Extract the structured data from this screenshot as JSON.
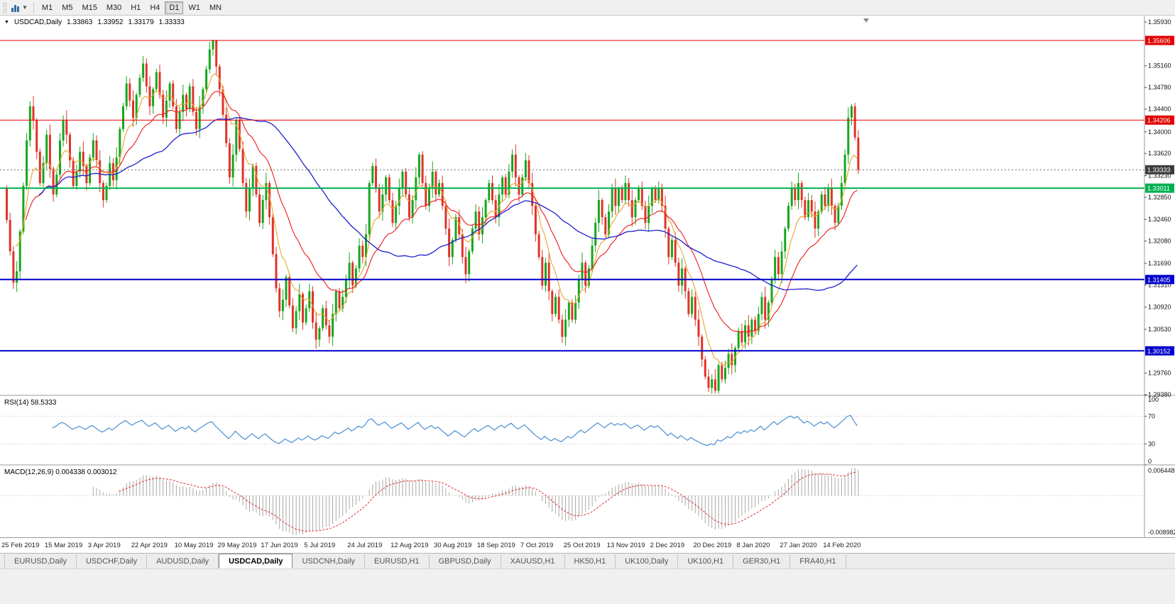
{
  "toolbar": {
    "timeframes": [
      {
        "label": "M1",
        "active": false
      },
      {
        "label": "M5",
        "active": false
      },
      {
        "label": "M15",
        "active": false
      },
      {
        "label": "M30",
        "active": false
      },
      {
        "label": "H1",
        "active": false
      },
      {
        "label": "H4",
        "active": false
      },
      {
        "label": "D1",
        "active": true
      },
      {
        "label": "W1",
        "active": false
      },
      {
        "label": "MN",
        "active": false
      }
    ]
  },
  "symbol_header": {
    "marker": "▼",
    "symbol": "USDCAD,Daily",
    "open": "1.33863",
    "high": "1.33952",
    "low": "1.33179",
    "close": "1.33333"
  },
  "current_price": {
    "value": 1.33333,
    "label": "1.33333"
  },
  "price_axis": {
    "badges": [
      {
        "label": "1.35606",
        "color": "#e00000"
      },
      {
        "label": "1.34206",
        "color": "#e00000"
      },
      {
        "label": "1.33333",
        "color": "#3c3c3c"
      },
      {
        "label": "1.33011",
        "color": "#00b050"
      },
      {
        "label": "1.31405",
        "color": "#0000cc"
      },
      {
        "label": "1.30152",
        "color": "#0000cc"
      }
    ]
  },
  "hlines": [
    {
      "price": 1.35606,
      "color": "#e00000",
      "width": 1
    },
    {
      "price": 1.34206,
      "color": "#e00000",
      "width": 1
    },
    {
      "price": 1.33011,
      "color": "#00b050",
      "width": 2
    },
    {
      "price": 1.31405,
      "color": "#0000cc",
      "width": 2
    },
    {
      "price": 1.30152,
      "color": "#0000cc",
      "width": 2
    }
  ],
  "chart_data": {
    "type": "candlestick",
    "symbol": "USDCAD",
    "timeframe": "Daily",
    "first_open": 1.33,
    "ylim": [
      1.2937,
      1.3598
    ],
    "y_ticks": [
      "1.35930",
      "1.35160",
      "1.34780",
      "1.34400",
      "1.34000",
      "1.33620",
      "1.33230",
      "1.32850",
      "1.32460",
      "1.32080",
      "1.31690",
      "1.31310",
      "1.30920",
      "1.30530",
      "1.29760",
      "1.29380"
    ],
    "x_label_every_n_bars": 13,
    "x_labels": [
      "25 Feb 2019",
      "15 Mar 2019",
      "3 Apr 2019",
      "22 Apr 2019",
      "10 May 2019",
      "29 May 2019",
      "17 Jun 2019",
      "5 Jul 2019",
      "24 Jul 2019",
      "12 Aug 2019",
      "30 Aug 2019",
      "18 Sep 2019",
      "7 Oct 2019",
      "25 Oct 2019",
      "13 Nov 2019",
      "2 Dec 2019",
      "20 Dec 2019",
      "8 Jan 2020",
      "27 Jan 2020",
      "14 Feb 2020"
    ],
    "closes": [
      1.3245,
      1.319,
      1.3135,
      1.3155,
      1.3225,
      1.3305,
      1.3385,
      1.3445,
      1.342,
      1.3365,
      1.331,
      1.3345,
      1.3395,
      1.3335,
      1.329,
      1.3325,
      1.3385,
      1.342,
      1.3395,
      1.335,
      1.3305,
      1.333,
      1.3365,
      1.334,
      1.331,
      1.3355,
      1.3385,
      1.335,
      1.331,
      1.328,
      1.3305,
      1.3345,
      1.3315,
      1.3355,
      1.3405,
      1.3445,
      1.3485,
      1.3455,
      1.3425,
      1.3465,
      1.3495,
      1.352,
      1.348,
      1.3445,
      1.3475,
      1.3505,
      1.3465,
      1.3425,
      1.3455,
      1.3485,
      1.3445,
      1.3405,
      1.3435,
      1.3465,
      1.344,
      1.348,
      1.3435,
      1.3405,
      1.3445,
      1.3475,
      1.351,
      1.3545,
      1.356,
      1.3515,
      1.3475,
      1.343,
      1.338,
      1.332,
      1.336,
      1.342,
      1.337,
      1.331,
      1.326,
      1.33,
      1.334,
      1.329,
      1.324,
      1.328,
      1.331,
      1.325,
      1.3185,
      1.3125,
      1.3085,
      1.3105,
      1.3145,
      1.3095,
      1.3055,
      1.3085,
      1.3115,
      1.3065,
      1.309,
      1.312,
      1.3065,
      1.3035,
      1.3055,
      1.309,
      1.306,
      1.304,
      1.308,
      1.312,
      1.309,
      1.311,
      1.314,
      1.317,
      1.313,
      1.316,
      1.32,
      1.318,
      1.322,
      1.331,
      1.334,
      1.33,
      1.326,
      1.329,
      1.332,
      1.328,
      1.324,
      1.327,
      1.33,
      1.333,
      1.329,
      1.325,
      1.328,
      1.332,
      1.336,
      1.331,
      1.327,
      1.33,
      1.333,
      1.329,
      1.331,
      1.327,
      1.323,
      1.318,
      1.321,
      1.325,
      1.322,
      1.318,
      1.315,
      1.319,
      1.323,
      1.326,
      1.322,
      1.325,
      1.328,
      1.331,
      1.328,
      1.325,
      1.329,
      1.332,
      1.329,
      1.333,
      1.336,
      1.332,
      1.329,
      1.332,
      1.335,
      1.331,
      1.327,
      1.322,
      1.318,
      1.313,
      1.317,
      1.312,
      1.308,
      1.311,
      1.307,
      1.304,
      1.307,
      1.31,
      1.307,
      1.31,
      1.314,
      1.317,
      1.313,
      1.316,
      1.32,
      1.324,
      1.328,
      1.325,
      1.322,
      1.326,
      1.33,
      1.327,
      1.33,
      1.328,
      1.331,
      1.328,
      1.325,
      1.328,
      1.33,
      1.327,
      1.324,
      1.327,
      1.33,
      1.328,
      1.33,
      1.327,
      1.323,
      1.318,
      1.321,
      1.317,
      1.313,
      1.316,
      1.312,
      1.308,
      1.311,
      1.307,
      1.304,
      1.3,
      1.297,
      1.295,
      1.2965,
      1.2945,
      1.299,
      1.2965,
      1.2985,
      1.301,
      1.299,
      1.302,
      1.305,
      1.303,
      1.306,
      1.304,
      1.307,
      1.305,
      1.308,
      1.311,
      1.307,
      1.31,
      1.314,
      1.318,
      1.315,
      1.319,
      1.323,
      1.327,
      1.33,
      1.328,
      1.331,
      1.328,
      1.325,
      1.328,
      1.326,
      1.323,
      1.326,
      1.329,
      1.327,
      1.33,
      1.327,
      1.324,
      1.327,
      1.331,
      1.336,
      1.3425,
      1.3445,
      1.339,
      1.33333
    ]
  },
  "rsi": {
    "label": "RSI(14)",
    "value": "58.5333",
    "period": 14,
    "scale": [
      "100",
      "70",
      "30",
      "0"
    ],
    "levels": [
      70,
      30
    ]
  },
  "macd": {
    "label": "MACD(12,26,9)",
    "main_value": "0.004338",
    "signal_value": "0.003012",
    "scale_top": "0.006448",
    "scale_bottom": "-0.008982"
  },
  "tabs": [
    {
      "label": "EURUSD,Daily",
      "active": false
    },
    {
      "label": "USDCHF,Daily",
      "active": false
    },
    {
      "label": "AUDUSD,Daily",
      "active": false
    },
    {
      "label": "USDCAD,Daily",
      "active": true
    },
    {
      "label": "USDCNH,Daily",
      "active": false
    },
    {
      "label": "EURUSD,H1",
      "active": false
    },
    {
      "label": "GBPUSD,Daily",
      "active": false
    },
    {
      "label": "XAUUSD,H1",
      "active": false
    },
    {
      "label": "HK50,H1",
      "active": false
    },
    {
      "label": "UK100,Daily",
      "active": false
    },
    {
      "label": "UK100,H1",
      "active": false
    },
    {
      "label": "GER30,H1",
      "active": false
    },
    {
      "label": "FRA40,H1",
      "active": false
    }
  ],
  "colors": {
    "bull": "#16a71c",
    "bear": "#e03328",
    "ma_fast": "#e8a52f",
    "ma_mid": "#f01818",
    "ma_slow": "#1f1fd0",
    "rsi_line": "#4a8ed2",
    "macd_bar": "#a8a8a8",
    "macd_signal": "#e03030",
    "axis_text": "#111111",
    "badge_text": "#ffffff"
  }
}
